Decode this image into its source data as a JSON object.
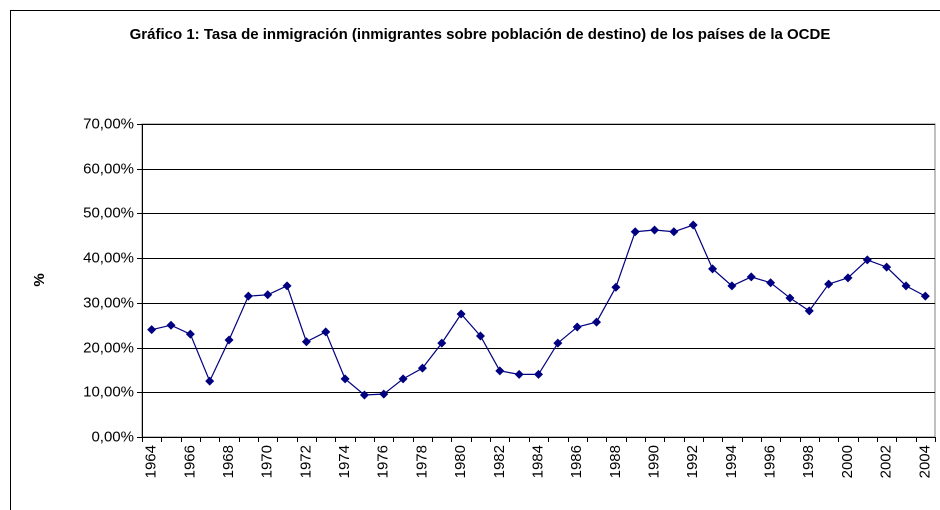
{
  "chart_data": {
    "type": "line",
    "title": "Gráfico 1: Tasa de inmigración (inmigrantes sobre población de destino) de los países de la OCDE",
    "y_label": "%",
    "categories": [
      "1964",
      null,
      "1966",
      null,
      "1968",
      null,
      "1970",
      null,
      "1972",
      null,
      "1974",
      null,
      "1976",
      null,
      "1978",
      null,
      "1980",
      null,
      "1982",
      null,
      "1984",
      null,
      "1986",
      null,
      "1988",
      null,
      "1990",
      null,
      "1992",
      null,
      "1994",
      null,
      "1996",
      null,
      "1998",
      null,
      "2000",
      null,
      "2002",
      null,
      "2004"
    ],
    "series": [
      {
        "name": "Tasa de inmigración",
        "color": "#000080",
        "values": [
          24,
          25,
          23,
          12.5,
          21.7,
          31.5,
          31.8,
          33.8,
          21.3,
          23.5,
          13,
          9.4,
          9.6,
          13,
          15.4,
          21,
          27.5,
          22.6,
          14.8,
          14,
          14,
          21,
          24.6,
          25.7,
          33.5,
          45.9,
          46.3,
          45.9,
          47.4,
          37.6,
          33.8,
          35.8,
          34.5,
          31.1,
          28.2,
          34.2,
          35.6,
          39.6,
          38,
          33.8,
          31.5
        ]
      }
    ],
    "ylim": [
      0,
      70
    ],
    "yticks": [
      {
        "value": 0,
        "label": "0,00%"
      },
      {
        "value": 10,
        "label": "10,00%"
      },
      {
        "value": 20,
        "label": "20,00%"
      },
      {
        "value": 30,
        "label": "30,00%"
      },
      {
        "value": 40,
        "label": "40,00%"
      },
      {
        "value": 50,
        "label": "50,00%"
      },
      {
        "value": 60,
        "label": "60,00%"
      },
      {
        "value": 70,
        "label": "70,00%"
      }
    ],
    "grid": true
  }
}
